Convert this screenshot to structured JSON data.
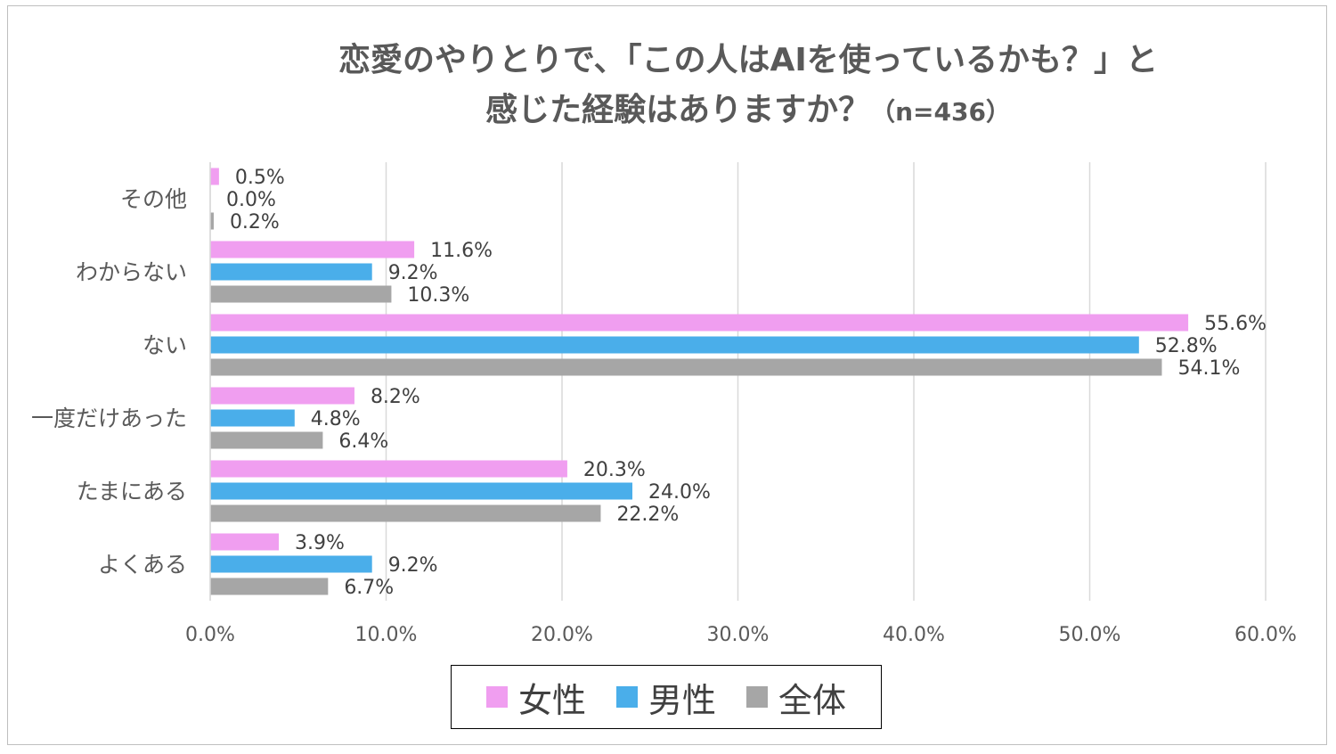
{
  "title": {
    "line1": "恋愛のやりとりで、「この人はAIを使っているかも？」と",
    "line2_main": "感じた経験はありますか？",
    "line2_n": "（n=436）"
  },
  "chart_data": {
    "type": "bar",
    "orientation": "horizontal",
    "categories": [
      "その他",
      "わからない",
      "ない",
      "一度だけあった",
      "たまにある",
      "よくある"
    ],
    "series": [
      {
        "name": "女性",
        "color": "#f09ef0",
        "values": [
          0.5,
          11.6,
          55.6,
          8.2,
          20.3,
          3.9
        ],
        "labels": [
          "0.5%",
          "11.6%",
          "55.6%",
          "8.2%",
          "20.3%",
          "3.9%"
        ]
      },
      {
        "name": "男性",
        "color": "#4aaeea",
        "values": [
          0.0,
          9.2,
          52.8,
          4.8,
          24.0,
          9.2
        ],
        "labels": [
          "0.0%",
          "9.2%",
          "52.8%",
          "4.8%",
          "24.0%",
          "9.2%"
        ]
      },
      {
        "name": "全体",
        "color": "#a6a6a6",
        "values": [
          0.2,
          10.3,
          54.1,
          6.4,
          22.2,
          6.7
        ],
        "labels": [
          "0.2%",
          "10.3%",
          "54.1%",
          "6.4%",
          "22.2%",
          "6.7%"
        ]
      }
    ],
    "xlim": [
      0,
      60
    ],
    "xticks": [
      0,
      10,
      20,
      30,
      40,
      50,
      60
    ],
    "xtick_labels": [
      "0.0%",
      "10.0%",
      "20.0%",
      "30.0%",
      "40.0%",
      "50.0%",
      "60.0%"
    ],
    "grid": "vertical",
    "legend_position": "bottom"
  }
}
